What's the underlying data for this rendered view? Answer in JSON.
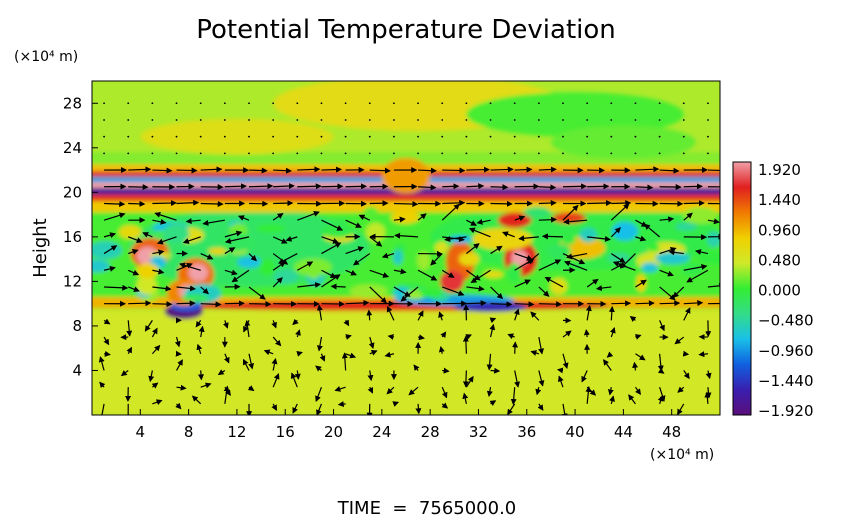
{
  "chart_data": {
    "type": "heatmap",
    "title": "Potential Temperature Deviation",
    "ylabel": "Height",
    "xlabel": "",
    "x_unit": "(×10⁴ m)",
    "y_unit": "(×10⁴ m)",
    "xlim": [
      0,
      52
    ],
    "ylim": [
      0,
      30
    ],
    "x_ticks": [
      "4",
      "8",
      "12",
      "16",
      "20",
      "24",
      "28",
      "32",
      "36",
      "40",
      "44",
      "48"
    ],
    "y_ticks": [
      "4",
      "8",
      "12",
      "16",
      "20",
      "24",
      "28"
    ],
    "colorbar": {
      "labels": [
        "1.920",
        "1.440",
        "0.960",
        "0.480",
        "0.000",
        "−0.480",
        "−0.960",
        "−1.440",
        "−1.920"
      ],
      "min": -1.92,
      "max": 1.92,
      "colors": [
        "#5a0f7a",
        "#3a1fb0",
        "#1060e0",
        "#19c0e8",
        "#33dd88",
        "#33ee33",
        "#cfe92a",
        "#f0d000",
        "#f07a00",
        "#e02020",
        "#f0a0a8"
      ]
    },
    "background_value": 0.3,
    "overlay": "wind vectors"
  },
  "footer": {
    "time_label": "TIME  =  7565000.0"
  },
  "colors": {
    "frame": "#000000",
    "arrow": "#000000"
  }
}
